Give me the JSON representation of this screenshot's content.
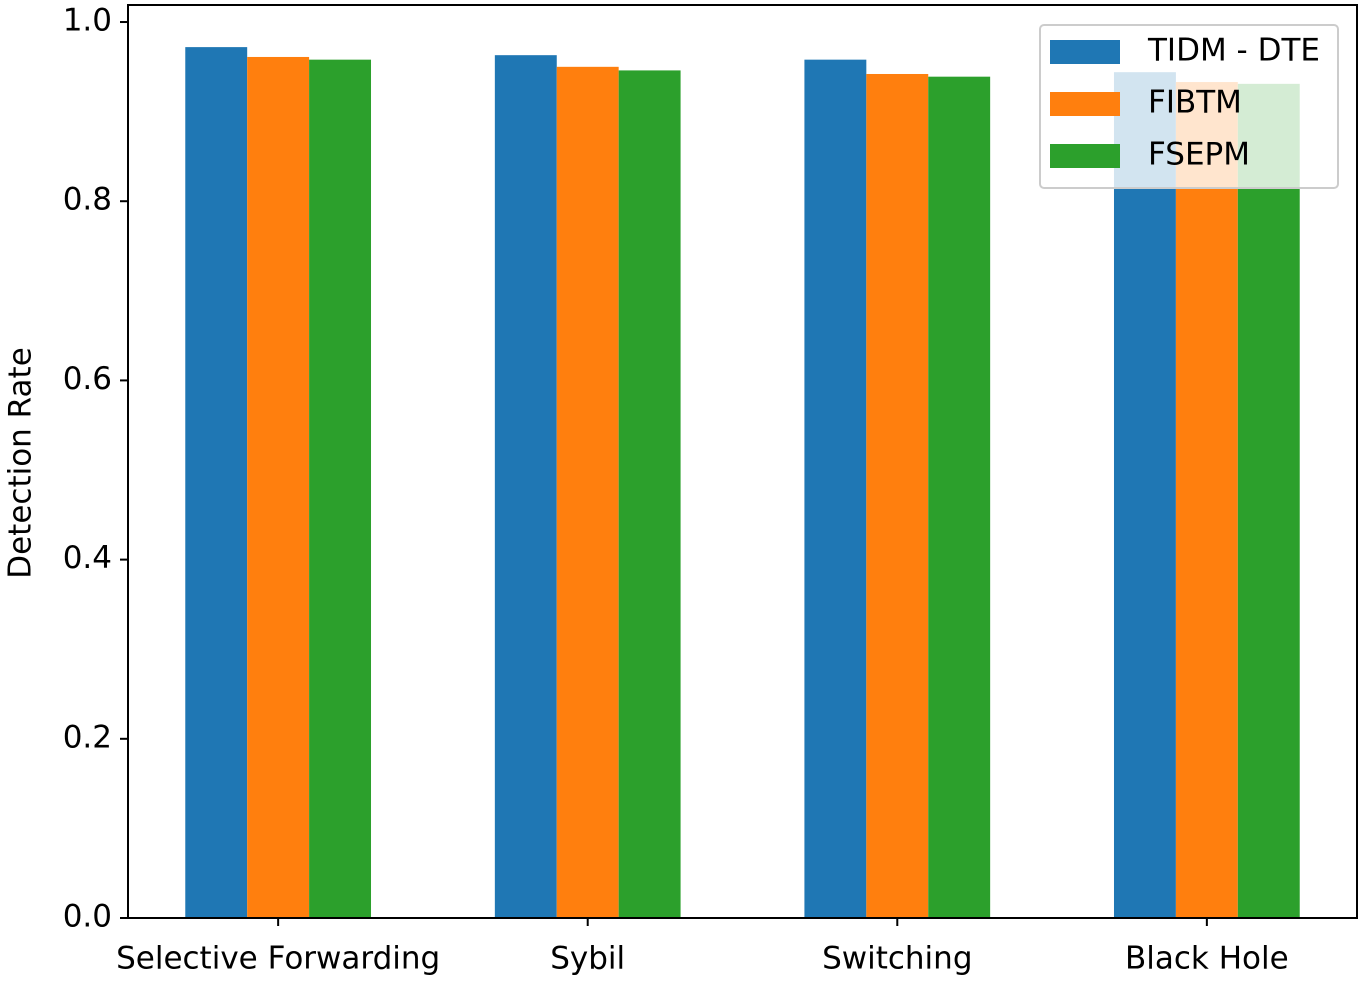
{
  "chart_data": {
    "type": "bar",
    "y_label": "Detection Rate",
    "categories": [
      "Selective Forwarding",
      "Sybil",
      "Switching",
      "Black Hole"
    ],
    "series": [
      {
        "name": "TIDM - DTE",
        "color": "#1f77b4",
        "values": [
          0.972,
          0.963,
          0.958,
          0.944
        ]
      },
      {
        "name": "FIBTM",
        "color": "#ff7f0e",
        "values": [
          0.961,
          0.95,
          0.942,
          0.933
        ]
      },
      {
        "name": "FSEPM",
        "color": "#2ca02c",
        "values": [
          0.958,
          0.946,
          0.939,
          0.931
        ]
      }
    ],
    "ylim": [
      0,
      1.019
    ],
    "yticks": [
      {
        "value": 0,
        "label": "0.0"
      },
      0.2,
      0.4,
      0.6,
      0.8,
      {
        "value": 1,
        "label": "1.0"
      }
    ],
    "legend": "upper right"
  }
}
